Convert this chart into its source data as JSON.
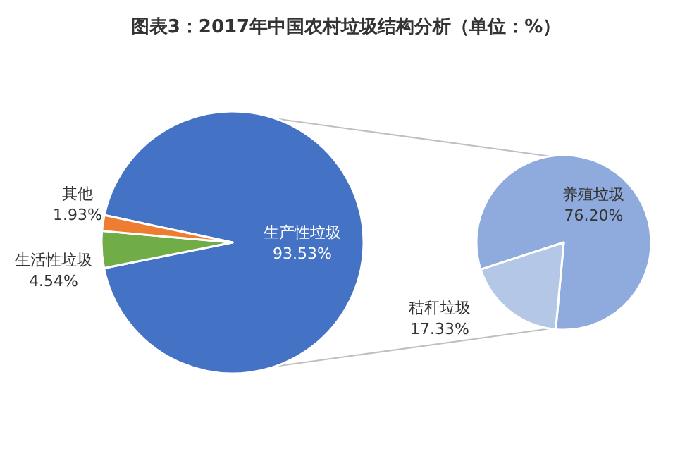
{
  "chart_data": [
    {
      "type": "pie",
      "title": "图表3：2017年中国农村垃圾结构分析（单位：%）",
      "categories": [
        "生产性垃圾",
        "生活性垃圾",
        "其他"
      ],
      "values": [
        93.53,
        4.54,
        1.93
      ],
      "value_labels": [
        "93.53%",
        "4.54%",
        "1.93%"
      ],
      "colors": [
        "#4472c4",
        "#70ad47",
        "#ed7d31"
      ]
    },
    {
      "type": "pie",
      "categories": [
        "养殖垃圾",
        "秸秆垃圾"
      ],
      "values": [
        76.2,
        17.33
      ],
      "value_labels": [
        "76.20%",
        "17.33%"
      ],
      "colors": [
        "#8faadc",
        "#b4c7e7"
      ]
    }
  ]
}
